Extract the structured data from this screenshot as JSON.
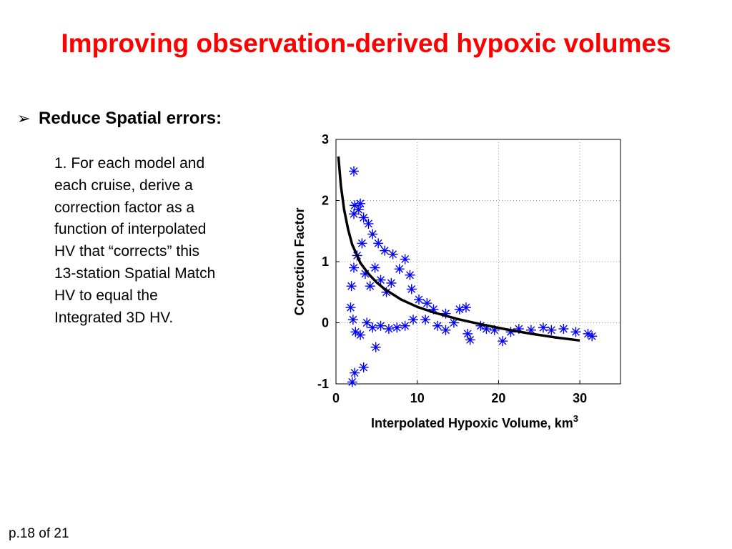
{
  "slide": {
    "title": "Improving observation-derived hypoxic volumes",
    "bullet_marker": "➢",
    "bullet": "Reduce Spatial errors:",
    "body_lines": [
      "1. For each model and",
      "each cruise, derive a",
      "correction factor as a",
      "function of interpolated",
      "HV that “corrects” this",
      "13-station Spatial Match",
      "HV to equal the",
      "Integrated 3D HV."
    ],
    "footer": "p.18 of 21"
  },
  "chart_data": {
    "type": "scatter",
    "xlabel": "Interpolated Hypoxic Volume, km",
    "xlabel_superscript": "3",
    "ylabel": "Correction Factor",
    "xlim": [
      0,
      35
    ],
    "ylim": [
      -1,
      3
    ],
    "x_ticks": [
      0,
      10,
      20,
      30
    ],
    "y_ticks": [
      -1,
      0,
      1,
      2,
      3
    ],
    "grid": true,
    "marker": "asterisk",
    "marker_color": "#0000ff",
    "fit_color": "#000000",
    "series": [
      {
        "points": [
          [
            2.2,
            2.48
          ],
          [
            2.0,
            -0.97
          ],
          [
            2.3,
            -0.82
          ],
          [
            3.4,
            -0.73
          ],
          [
            4.9,
            -0.4
          ],
          [
            2.3,
            1.92
          ],
          [
            3.0,
            1.95
          ],
          [
            2.8,
            1.85
          ],
          [
            2.2,
            1.78
          ],
          [
            3.4,
            1.72
          ],
          [
            4.0,
            1.62
          ],
          [
            4.5,
            1.45
          ],
          [
            5.2,
            1.3
          ],
          [
            6.0,
            1.18
          ],
          [
            7.0,
            1.12
          ],
          [
            8.5,
            1.04
          ],
          [
            7.8,
            0.88
          ],
          [
            9.1,
            0.78
          ],
          [
            9.3,
            0.55
          ],
          [
            10.2,
            0.38
          ],
          [
            11.2,
            0.32
          ],
          [
            12.0,
            0.22
          ],
          [
            13.5,
            0.15
          ],
          [
            15.2,
            0.22
          ],
          [
            16.0,
            0.25
          ],
          [
            16.2,
            -0.18
          ],
          [
            16.5,
            -0.28
          ],
          [
            17.8,
            -0.05
          ],
          [
            18.5,
            -0.1
          ],
          [
            19.5,
            -0.12
          ],
          [
            20.5,
            -0.3
          ],
          [
            21.5,
            -0.15
          ],
          [
            22.5,
            -0.1
          ],
          [
            24.0,
            -0.12
          ],
          [
            25.5,
            -0.08
          ],
          [
            26.5,
            -0.12
          ],
          [
            28.0,
            -0.1
          ],
          [
            29.5,
            -0.15
          ],
          [
            31.0,
            -0.18
          ],
          [
            31.5,
            -0.22
          ],
          [
            1.8,
            0.25
          ],
          [
            2.1,
            0.05
          ],
          [
            2.4,
            -0.15
          ],
          [
            3.0,
            -0.2
          ],
          [
            3.8,
            0.0
          ],
          [
            4.5,
            -0.08
          ],
          [
            5.5,
            -0.05
          ],
          [
            6.5,
            -0.1
          ],
          [
            7.5,
            -0.08
          ],
          [
            8.5,
            -0.05
          ],
          [
            9.5,
            0.05
          ],
          [
            11.0,
            0.05
          ],
          [
            12.5,
            -0.05
          ],
          [
            13.5,
            -0.12
          ],
          [
            14.5,
            0.0
          ],
          [
            1.9,
            0.6
          ],
          [
            2.2,
            0.9
          ],
          [
            2.6,
            1.1
          ],
          [
            3.2,
            1.3
          ],
          [
            3.6,
            0.8
          ],
          [
            4.2,
            0.6
          ],
          [
            4.8,
            0.9
          ],
          [
            5.5,
            0.7
          ],
          [
            6.2,
            0.5
          ],
          [
            6.8,
            0.65
          ]
        ]
      }
    ],
    "fit": {
      "x": [
        0.3,
        0.6,
        1.0,
        1.5,
        2.0,
        3.0,
        4.0,
        5.0,
        6.0,
        8.0,
        10.0,
        12.0,
        15.0,
        18.0,
        21.0,
        24.0,
        27.0,
        30.0
      ],
      "y": [
        2.72,
        2.25,
        1.85,
        1.52,
        1.28,
        0.98,
        0.8,
        0.66,
        0.55,
        0.38,
        0.26,
        0.17,
        0.06,
        -0.03,
        -0.11,
        -0.18,
        -0.24,
        -0.29
      ]
    }
  }
}
